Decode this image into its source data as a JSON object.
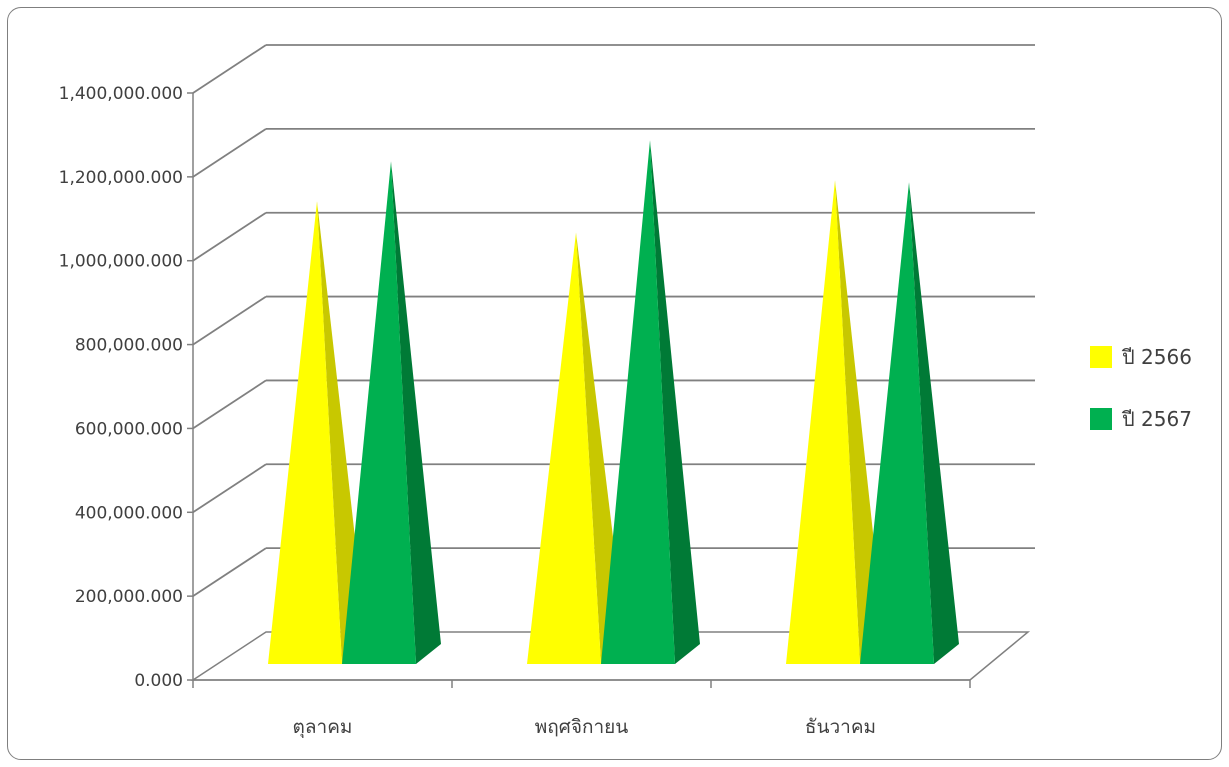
{
  "chart_data": {
    "type": "bar",
    "style": "3d-pyramid",
    "categories": [
      "ตุลาคม",
      "พฤศจิกายน",
      "ธันวาคม"
    ],
    "series": [
      {
        "name": "ปี 2566",
        "color": "#ffff00",
        "shade": "#c8c800",
        "values": [
          1085000000,
          1010000000,
          1135000000
        ]
      },
      {
        "name": "ปี 2567",
        "color": "#00b050",
        "shade": "#007a36",
        "values": [
          1180000000,
          1230000000,
          1130000000
        ]
      }
    ],
    "ylim": [
      0,
      1400000000
    ],
    "yticks": [
      0,
      200000000,
      400000000,
      600000000,
      800000000,
      1000000000,
      1200000000,
      1400000000
    ],
    "ytick_labels": [
      "0.000",
      "200,000.000",
      "400,000.000",
      "600,000.000",
      "800,000.000",
      "1,000,000.000",
      "1,200,000.000",
      "1,400,000.000"
    ],
    "grid": true,
    "legend_position": "right",
    "title": "",
    "xlabel": "",
    "ylabel": ""
  }
}
